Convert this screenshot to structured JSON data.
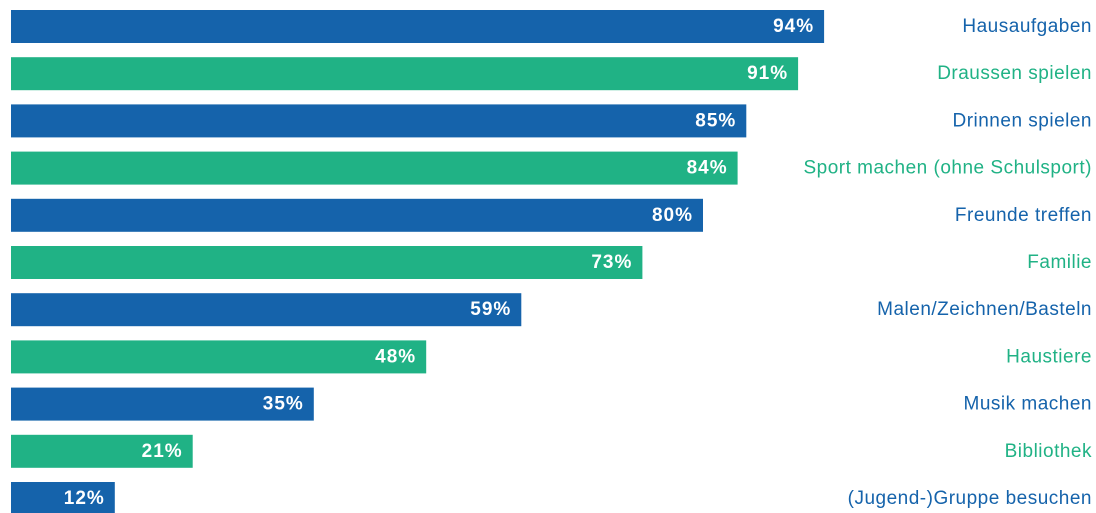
{
  "chart_data": {
    "type": "bar",
    "orientation": "horizontal",
    "unit": "%",
    "categories": [
      "Hausaufgaben",
      "Draussen spielen",
      "Drinnen spielen",
      "Sport machen (ohne Schulsport)",
      "Freunde treffen",
      "Familie",
      "Malen/Zeichnen/Basteln",
      "Haustiere",
      "Musik machen",
      "Bibliothek",
      "(Jugend-)Gruppe besuchen"
    ],
    "values": [
      94,
      91,
      85,
      84,
      80,
      73,
      59,
      48,
      35,
      21,
      12
    ],
    "value_labels": [
      "94%",
      "91%",
      "85%",
      "84%",
      "80%",
      "73%",
      "59%",
      "48%",
      "35%",
      "21%",
      "12%"
    ],
    "title": "",
    "xlabel": "",
    "ylabel": "",
    "xlim": [
      0,
      100
    ],
    "grid": false,
    "legend": "none",
    "colors": {
      "blue": "#1563ab",
      "green": "#20b285"
    },
    "bar_colors": [
      "#1563ab",
      "#20b285",
      "#1563ab",
      "#20b285",
      "#1563ab",
      "#20b285",
      "#1563ab",
      "#20b285",
      "#1563ab",
      "#20b285",
      "#1563ab"
    ]
  }
}
